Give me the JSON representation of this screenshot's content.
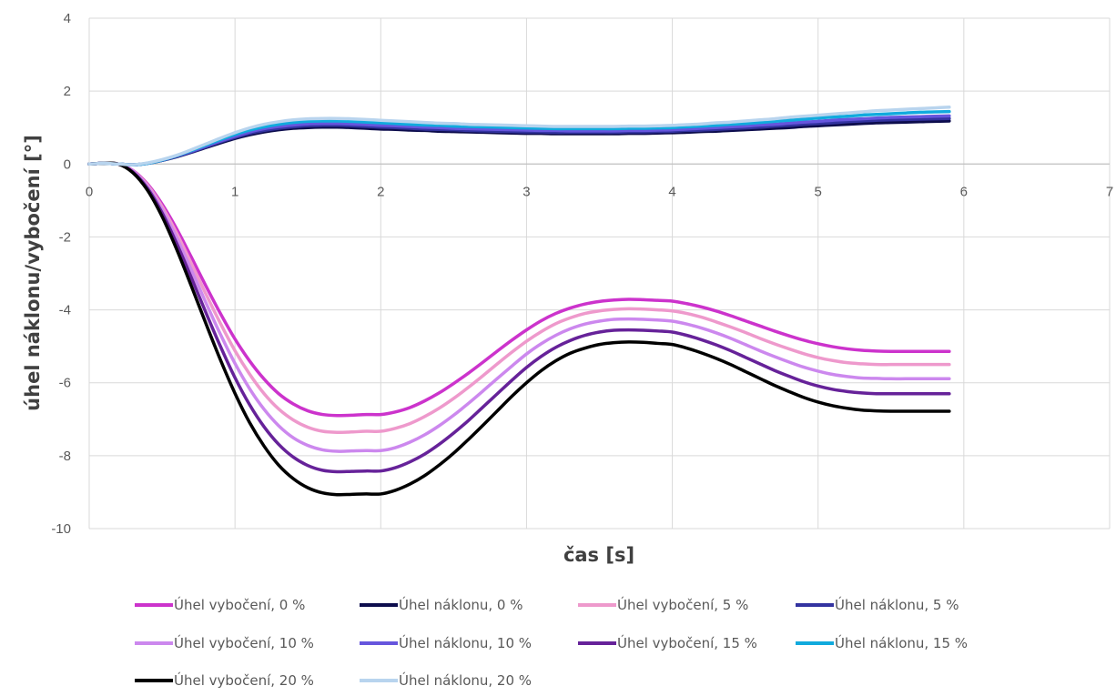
{
  "chart_data": {
    "type": "line",
    "title": "",
    "xlabel": "čas [s]",
    "ylabel": "úhel náklonu/vybočení  [°]",
    "xlim": [
      0,
      7
    ],
    "ylim": [
      -10,
      4
    ],
    "xticks": [
      0,
      1,
      2,
      3,
      4,
      5,
      6,
      7
    ],
    "yticks": [
      4,
      2,
      0,
      -2,
      -4,
      -6,
      -8,
      -10
    ],
    "grid": true,
    "legend_position": "bottom",
    "x": [
      0,
      0.1,
      0.2,
      0.3,
      0.4,
      0.5,
      0.6,
      0.7,
      0.8,
      0.9,
      1.0,
      1.1,
      1.2,
      1.3,
      1.4,
      1.5,
      1.6,
      1.7,
      1.8,
      1.9,
      2.0,
      2.1,
      2.2,
      2.3,
      2.4,
      2.5,
      2.6,
      2.7,
      2.8,
      2.9,
      3.0,
      3.1,
      3.2,
      3.3,
      3.4,
      3.5,
      3.6,
      3.7,
      3.8,
      3.9,
      4.0,
      4.1,
      4.2,
      4.3,
      4.4,
      4.5,
      4.6,
      4.7,
      4.8,
      4.9,
      5.0,
      5.1,
      5.2,
      5.3,
      5.4,
      5.5,
      5.6,
      5.7,
      5.8,
      5.9
    ],
    "series": [
      {
        "name": "Úhel vybočení, 0 %",
        "color": "#cc33cc",
        "values": [
          0,
          0.02,
          0,
          -0.18,
          -0.55,
          -1.1,
          -1.78,
          -2.55,
          -3.34,
          -4.1,
          -4.8,
          -5.4,
          -5.9,
          -6.3,
          -6.58,
          -6.77,
          -6.87,
          -6.9,
          -6.89,
          -6.87,
          -6.87,
          -6.8,
          -6.68,
          -6.5,
          -6.28,
          -6.02,
          -5.74,
          -5.44,
          -5.13,
          -4.83,
          -4.55,
          -4.3,
          -4.1,
          -3.95,
          -3.84,
          -3.77,
          -3.73,
          -3.71,
          -3.72,
          -3.74,
          -3.76,
          -3.83,
          -3.92,
          -4.03,
          -4.16,
          -4.3,
          -4.44,
          -4.58,
          -4.71,
          -4.83,
          -4.93,
          -5.01,
          -5.07,
          -5.11,
          -5.13,
          -5.14,
          -5.14,
          -5.14,
          -5.14,
          -5.14
        ]
      },
      {
        "name": "Úhel náklonu, 0 %",
        "color": "#0d0d4d",
        "values": [
          0,
          0.02,
          0,
          -0.02,
          0.02,
          0.1,
          0.2,
          0.32,
          0.45,
          0.58,
          0.7,
          0.8,
          0.88,
          0.94,
          0.98,
          1.0,
          1.01,
          1.01,
          1.0,
          0.98,
          0.96,
          0.95,
          0.93,
          0.92,
          0.9,
          0.89,
          0.88,
          0.87,
          0.86,
          0.85,
          0.84,
          0.84,
          0.83,
          0.83,
          0.83,
          0.83,
          0.83,
          0.84,
          0.84,
          0.85,
          0.86,
          0.87,
          0.89,
          0.9,
          0.92,
          0.94,
          0.96,
          0.98,
          1.0,
          1.03,
          1.05,
          1.07,
          1.09,
          1.11,
          1.13,
          1.14,
          1.15,
          1.16,
          1.17,
          1.18
        ]
      },
      {
        "name": "Úhel vybočení, 5 %",
        "color": "#ee99cc",
        "values": [
          0,
          0.02,
          0,
          -0.19,
          -0.58,
          -1.17,
          -1.9,
          -2.72,
          -3.56,
          -4.37,
          -5.12,
          -5.76,
          -6.3,
          -6.72,
          -7.02,
          -7.22,
          -7.33,
          -7.36,
          -7.35,
          -7.33,
          -7.33,
          -7.25,
          -7.12,
          -6.93,
          -6.7,
          -6.43,
          -6.13,
          -5.81,
          -5.48,
          -5.16,
          -4.86,
          -4.6,
          -4.38,
          -4.22,
          -4.1,
          -4.03,
          -3.99,
          -3.97,
          -3.98,
          -4.0,
          -4.03,
          -4.1,
          -4.2,
          -4.33,
          -4.47,
          -4.62,
          -4.78,
          -4.93,
          -5.07,
          -5.2,
          -5.31,
          -5.39,
          -5.45,
          -5.48,
          -5.5,
          -5.5,
          -5.5,
          -5.5,
          -5.5,
          -5.5
        ]
      },
      {
        "name": "Úhel náklonu, 5 %",
        "color": "#3333a0",
        "values": [
          0,
          0.02,
          0,
          -0.02,
          0.02,
          0.1,
          0.21,
          0.33,
          0.47,
          0.61,
          0.73,
          0.84,
          0.92,
          0.98,
          1.02,
          1.05,
          1.06,
          1.06,
          1.05,
          1.03,
          1.01,
          1.0,
          0.98,
          0.96,
          0.95,
          0.94,
          0.92,
          0.91,
          0.9,
          0.89,
          0.88,
          0.88,
          0.87,
          0.87,
          0.87,
          0.87,
          0.87,
          0.88,
          0.88,
          0.89,
          0.9,
          0.92,
          0.93,
          0.95,
          0.97,
          0.99,
          1.01,
          1.04,
          1.06,
          1.09,
          1.11,
          1.13,
          1.16,
          1.18,
          1.2,
          1.21,
          1.22,
          1.23,
          1.24,
          1.25
        ]
      },
      {
        "name": "Úhel vybočení, 10 %",
        "color": "#cc88ee",
        "values": [
          0,
          0.02,
          0,
          -0.2,
          -0.62,
          -1.25,
          -2.03,
          -2.9,
          -3.8,
          -4.67,
          -5.47,
          -6.16,
          -6.73,
          -7.18,
          -7.51,
          -7.72,
          -7.84,
          -7.88,
          -7.87,
          -7.86,
          -7.86,
          -7.78,
          -7.63,
          -7.43,
          -7.18,
          -6.89,
          -6.57,
          -6.23,
          -5.88,
          -5.54,
          -5.21,
          -4.93,
          -4.7,
          -4.52,
          -4.39,
          -4.31,
          -4.26,
          -4.25,
          -4.26,
          -4.28,
          -4.31,
          -4.39,
          -4.5,
          -4.63,
          -4.78,
          -4.95,
          -5.12,
          -5.28,
          -5.43,
          -5.57,
          -5.68,
          -5.77,
          -5.83,
          -5.87,
          -5.88,
          -5.89,
          -5.89,
          -5.89,
          -5.89,
          -5.89
        ]
      },
      {
        "name": "Úhel náklonu, 10 %",
        "color": "#6655dd",
        "values": [
          0,
          0.02,
          0,
          -0.02,
          0.02,
          0.11,
          0.22,
          0.35,
          0.49,
          0.63,
          0.76,
          0.88,
          0.97,
          1.03,
          1.07,
          1.1,
          1.11,
          1.11,
          1.1,
          1.08,
          1.06,
          1.05,
          1.03,
          1.01,
          1.0,
          0.98,
          0.97,
          0.96,
          0.95,
          0.94,
          0.93,
          0.92,
          0.92,
          0.91,
          0.91,
          0.91,
          0.91,
          0.92,
          0.92,
          0.93,
          0.94,
          0.96,
          0.98,
          1.0,
          1.02,
          1.04,
          1.07,
          1.09,
          1.12,
          1.15,
          1.17,
          1.2,
          1.22,
          1.24,
          1.26,
          1.28,
          1.29,
          1.3,
          1.31,
          1.32
        ]
      },
      {
        "name": "Úhel vybočení, 15 %",
        "color": "#662299",
        "values": [
          0,
          0.02,
          0,
          -0.22,
          -0.67,
          -1.34,
          -2.18,
          -3.11,
          -4.07,
          -5.0,
          -5.86,
          -6.6,
          -7.21,
          -7.69,
          -8.04,
          -8.27,
          -8.4,
          -8.44,
          -8.43,
          -8.42,
          -8.42,
          -8.33,
          -8.17,
          -7.96,
          -7.69,
          -7.38,
          -7.04,
          -6.67,
          -6.3,
          -5.93,
          -5.58,
          -5.28,
          -5.03,
          -4.84,
          -4.7,
          -4.61,
          -4.56,
          -4.55,
          -4.56,
          -4.58,
          -4.61,
          -4.7,
          -4.82,
          -4.96,
          -5.12,
          -5.3,
          -5.48,
          -5.66,
          -5.82,
          -5.97,
          -6.09,
          -6.18,
          -6.24,
          -6.28,
          -6.3,
          -6.3,
          -6.3,
          -6.3,
          -6.3,
          -6.3
        ]
      },
      {
        "name": "Úhel náklonu, 15 %",
        "color": "#11aadd",
        "values": [
          0,
          0.02,
          0,
          -0.02,
          0.02,
          0.11,
          0.23,
          0.37,
          0.52,
          0.67,
          0.81,
          0.93,
          1.02,
          1.09,
          1.14,
          1.17,
          1.18,
          1.18,
          1.17,
          1.15,
          1.13,
          1.11,
          1.09,
          1.07,
          1.06,
          1.04,
          1.03,
          1.02,
          1.01,
          1.0,
          0.99,
          0.98,
          0.97,
          0.97,
          0.97,
          0.97,
          0.97,
          0.98,
          0.98,
          0.99,
          1.0,
          1.02,
          1.04,
          1.06,
          1.09,
          1.11,
          1.14,
          1.17,
          1.2,
          1.23,
          1.26,
          1.29,
          1.31,
          1.34,
          1.36,
          1.38,
          1.4,
          1.42,
          1.43,
          1.44
        ]
      },
      {
        "name": "Úhel vybočení, 20 %",
        "color": "#000000",
        "values": [
          0,
          0.02,
          0,
          -0.24,
          -0.72,
          -1.44,
          -2.34,
          -3.34,
          -4.37,
          -5.37,
          -6.29,
          -7.09,
          -7.74,
          -8.26,
          -8.63,
          -8.88,
          -9.02,
          -9.07,
          -9.06,
          -9.05,
          -9.05,
          -8.95,
          -8.78,
          -8.55,
          -8.26,
          -7.93,
          -7.56,
          -7.17,
          -6.77,
          -6.37,
          -6.0,
          -5.67,
          -5.4,
          -5.19,
          -5.05,
          -4.95,
          -4.9,
          -4.88,
          -4.89,
          -4.92,
          -4.95,
          -5.05,
          -5.18,
          -5.33,
          -5.5,
          -5.69,
          -5.88,
          -6.07,
          -6.24,
          -6.4,
          -6.53,
          -6.63,
          -6.7,
          -6.75,
          -6.77,
          -6.78,
          -6.78,
          -6.78,
          -6.78,
          -6.78
        ]
      },
      {
        "name": "Úhel náklonu, 20 %",
        "color": "#b8d4ee",
        "values": [
          0,
          0.02,
          0,
          -0.02,
          0.03,
          0.12,
          0.24,
          0.39,
          0.55,
          0.71,
          0.86,
          0.99,
          1.09,
          1.16,
          1.21,
          1.24,
          1.25,
          1.25,
          1.24,
          1.22,
          1.2,
          1.18,
          1.16,
          1.14,
          1.12,
          1.11,
          1.09,
          1.08,
          1.07,
          1.06,
          1.05,
          1.04,
          1.03,
          1.03,
          1.03,
          1.03,
          1.03,
          1.04,
          1.04,
          1.05,
          1.06,
          1.08,
          1.1,
          1.13,
          1.15,
          1.18,
          1.21,
          1.24,
          1.28,
          1.31,
          1.34,
          1.37,
          1.4,
          1.43,
          1.46,
          1.48,
          1.5,
          1.52,
          1.54,
          1.56
        ]
      }
    ]
  }
}
